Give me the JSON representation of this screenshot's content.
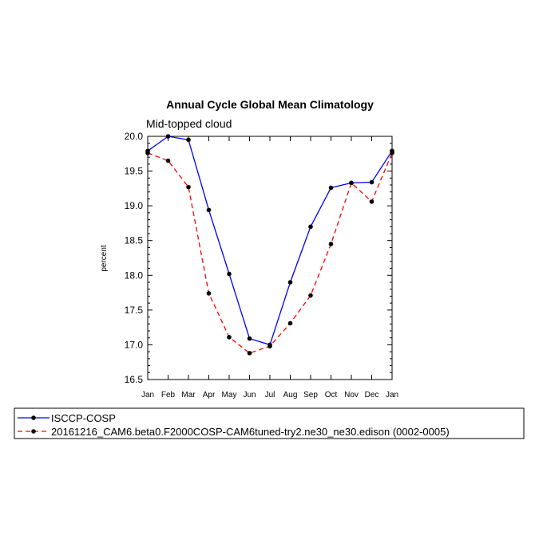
{
  "chart_data": {
    "type": "line",
    "title": "Annual Cycle Global Mean Climatology",
    "subtitle": "Mid-topped cloud",
    "xlabel": "",
    "ylabel": "percent",
    "categories": [
      "Jan",
      "Feb",
      "Mar",
      "Apr",
      "May",
      "Jun",
      "Jul",
      "Aug",
      "Sep",
      "Oct",
      "Nov",
      "Dec",
      "Jan"
    ],
    "ylim": [
      16.5,
      20.0
    ],
    "yticks": [
      "16.5",
      "17.0",
      "17.5",
      "18.0",
      "18.5",
      "19.0",
      "19.5",
      "20.0"
    ],
    "series": [
      {
        "name": "ISCCP-COSP",
        "color": "#0000ff",
        "dash": "solid",
        "values": [
          19.79,
          20.0,
          19.95,
          18.94,
          18.02,
          17.09,
          17.0,
          17.9,
          18.7,
          19.26,
          19.33,
          19.34,
          19.79
        ]
      },
      {
        "name": "20161216_CAM6.beta0.F2000COSP-CAM6tuned-try2.ne30_ne30.edison (0002-0005)",
        "color": "#ff0000",
        "dash": "dashed",
        "values": [
          19.76,
          19.65,
          19.27,
          17.74,
          17.11,
          16.88,
          16.98,
          17.31,
          17.71,
          18.45,
          19.33,
          19.06,
          19.76
        ]
      }
    ],
    "legend_position": "bottom"
  }
}
